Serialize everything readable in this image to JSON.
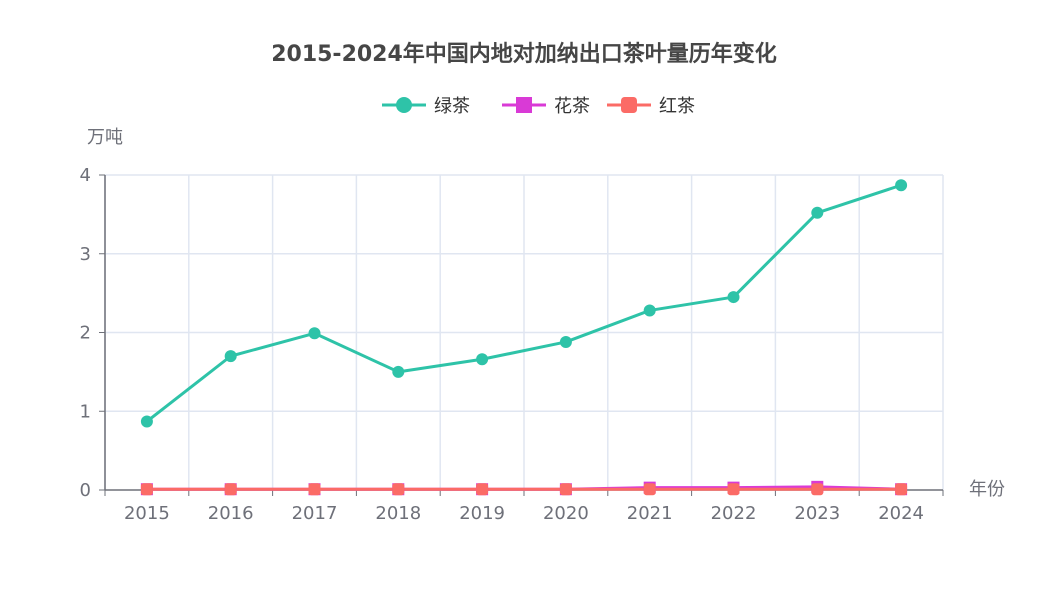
{
  "chart_data": {
    "type": "line",
    "title": "2015-2024年中国内地对加纳出口茶叶量历年变化",
    "xlabel": "年份",
    "ylabel": "万吨",
    "categories": [
      "2015",
      "2016",
      "2017",
      "2018",
      "2019",
      "2020",
      "2021",
      "2022",
      "2023",
      "2024"
    ],
    "ylim": [
      0,
      4
    ],
    "yticks": [
      "0",
      "1",
      "2",
      "3",
      "4"
    ],
    "grid": true,
    "legend_position": "top-center",
    "series": [
      {
        "name": "绿茶",
        "color": "#2ec3a8",
        "marker": "circle",
        "values": [
          0.87,
          1.7,
          1.99,
          1.5,
          1.66,
          1.88,
          2.28,
          2.45,
          3.52,
          3.87
        ]
      },
      {
        "name": "花茶",
        "color": "#d93ad6",
        "marker": "square",
        "values": [
          0.01,
          0.01,
          0.01,
          0.01,
          0.01,
          0.01,
          0.03,
          0.03,
          0.04,
          0.01
        ]
      },
      {
        "name": "红茶",
        "color": "#fb6b66",
        "marker": "roundrect",
        "values": [
          0.01,
          0.01,
          0.01,
          0.01,
          0.01,
          0.01,
          0.01,
          0.01,
          0.01,
          0.01
        ]
      }
    ]
  }
}
